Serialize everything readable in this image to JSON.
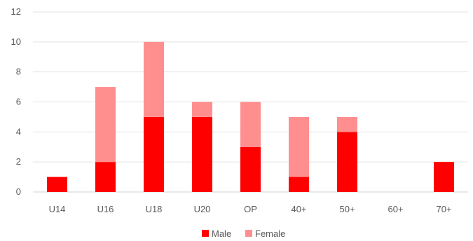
{
  "chart_data": {
    "type": "bar",
    "stacked": true,
    "categories": [
      "U14",
      "U16",
      "U18",
      "U20",
      "OP",
      "40+",
      "50+",
      "60+",
      "70+"
    ],
    "series": [
      {
        "name": "Male",
        "color": "#ff0000",
        "values": [
          1,
          2,
          5,
          5,
          3,
          1,
          4,
          0,
          2
        ]
      },
      {
        "name": "Female",
        "color": "#ff8f8f",
        "values": [
          0,
          5,
          5,
          1,
          3,
          4,
          1,
          0,
          0
        ]
      }
    ],
    "ylim": [
      0,
      12
    ],
    "yticks": [
      0,
      2,
      4,
      6,
      8,
      10,
      12
    ],
    "grid": true,
    "legend": "bottom-center"
  }
}
